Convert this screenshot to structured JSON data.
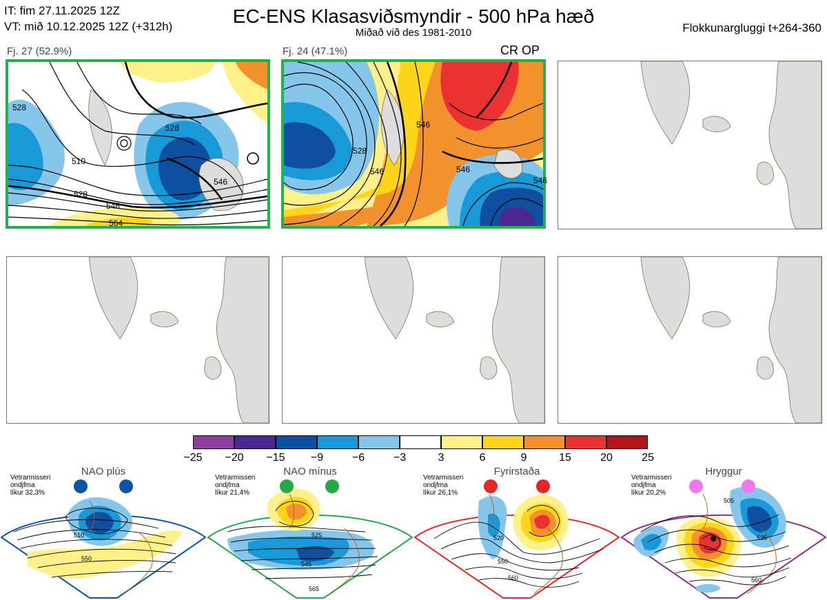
{
  "header": {
    "init_time": "IT: fim 27.11.2025 12Z",
    "valid_time": "VT: mið 10.12.2025 12Z  (+312h)",
    "title": "EC-ENS Klasasviðsmyndir - 500 hPa hæð",
    "subtitle": "Miðað við des 1981-2010",
    "window": "Flokkunargluggi t+264-360"
  },
  "clusters": [
    {
      "label": "Fj. 27 (52.9%)",
      "selected": true,
      "contours": [
        "510",
        "528",
        "546",
        "564",
        "528",
        "546",
        "528"
      ]
    },
    {
      "label": "Fj. 24 (47.1%)",
      "selected": true,
      "badge": "CR OP",
      "contours": [
        "528",
        "546",
        "546",
        "546",
        "546"
      ]
    },
    {
      "label": "",
      "selected": false
    },
    {
      "label": "",
      "selected": false
    },
    {
      "label": "",
      "selected": false
    },
    {
      "label": "",
      "selected": false
    }
  ],
  "colorbar": {
    "colors": [
      "#8e3f9d",
      "#4a2a92",
      "#0e4fa0",
      "#1899d8",
      "#86c6eb",
      "#ffffff",
      "#fff18a",
      "#ffd51a",
      "#f3912c",
      "#e93231",
      "#b41419"
    ],
    "ticks": [
      "−25",
      "−20",
      "−15",
      "−9",
      "−6",
      "−3",
      "3",
      "6",
      "9",
      "15",
      "20",
      "25"
    ]
  },
  "regimes": [
    {
      "name": "NAO plús",
      "prob_lines": [
        "Vetrarmisseri",
        "ondjfma",
        "líkur 32,3%"
      ],
      "color": "#0a55a5",
      "contours": [
        "510",
        "550"
      ]
    },
    {
      "name": "NAO mínus",
      "prob_lines": [
        "Vetrarmisseri",
        "ondjfma",
        "líkur 21,4%"
      ],
      "color": "#25a84a",
      "contours": [
        "525",
        "545",
        "565"
      ]
    },
    {
      "name": "Fyrirstaða",
      "prob_lines": [
        "Vetrarmisseri",
        "ondjfma",
        "líkur 26,1%"
      ],
      "color": "#e52725",
      "contours": [
        "520",
        "550",
        "560"
      ]
    },
    {
      "name": "Hryggur",
      "prob_lines": [
        "Vetrarmisseri",
        "ondjfma",
        "líkur 20,2%"
      ],
      "color": "#8e2b8f",
      "contours": [
        "505",
        "535",
        "560"
      ]
    }
  ]
}
